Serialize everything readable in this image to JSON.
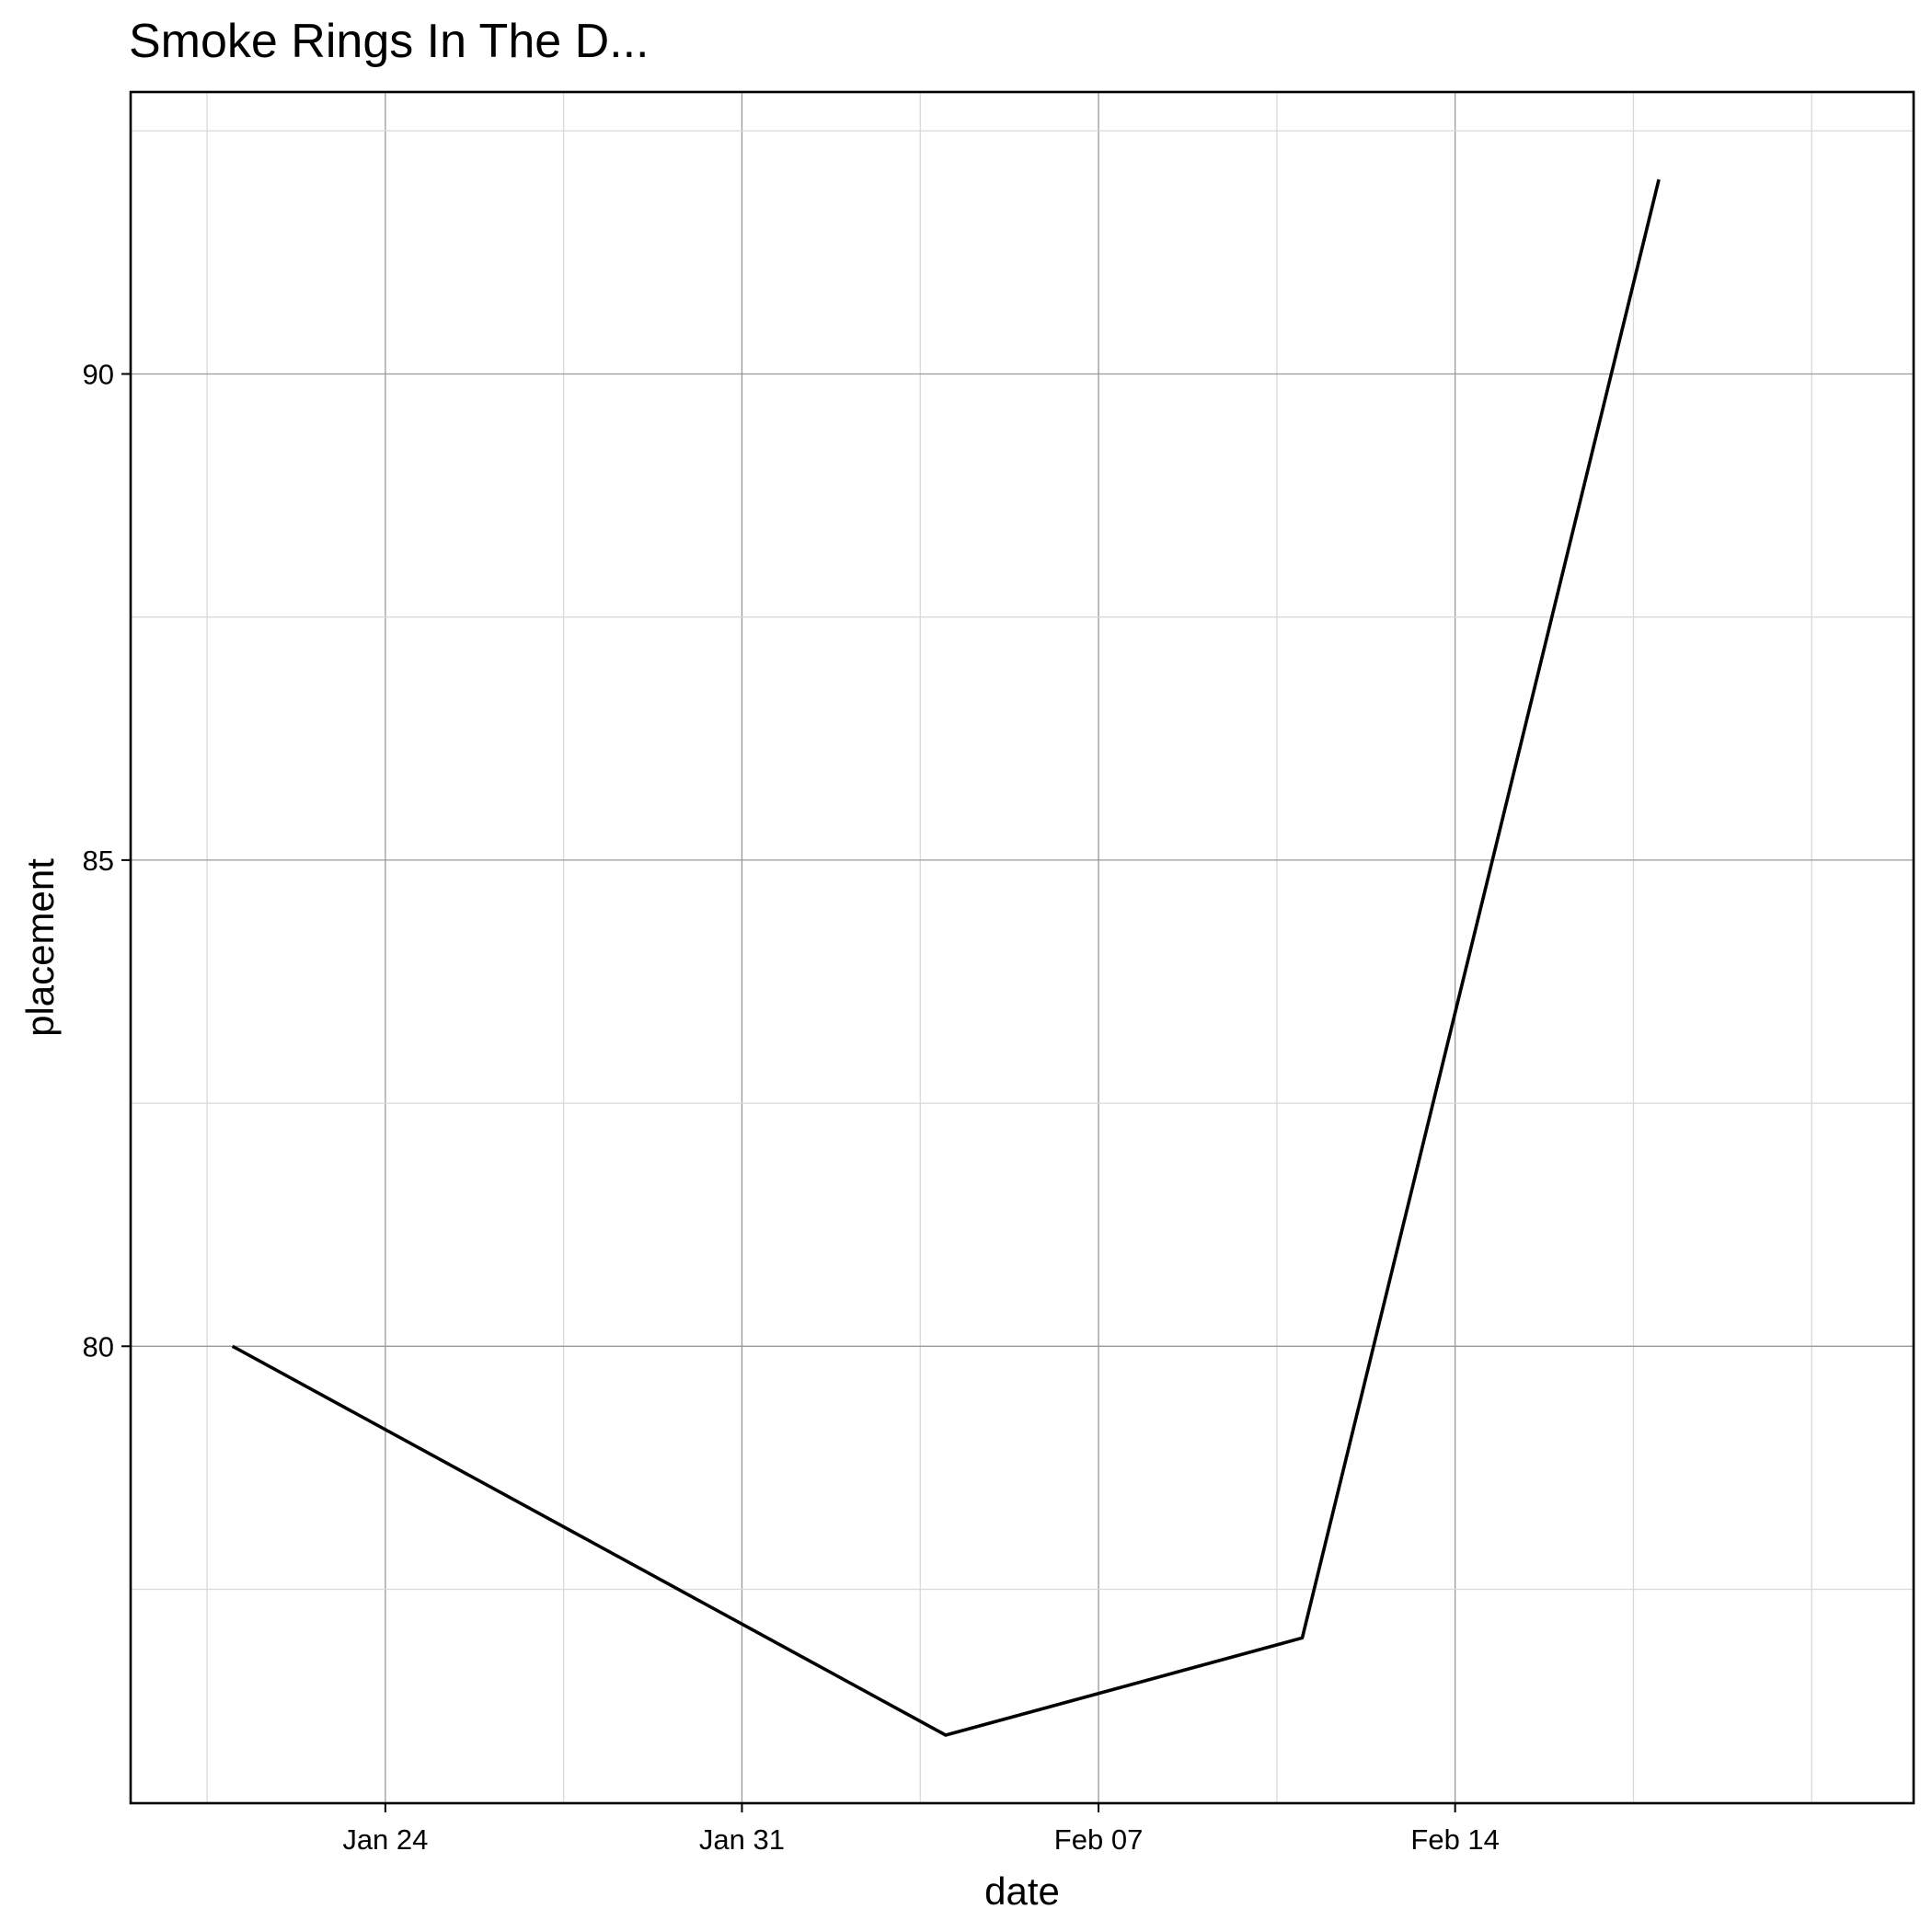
{
  "chart_data": {
    "type": "line",
    "title": "Smoke Rings In The D...",
    "xlabel": "date",
    "ylabel": "placement",
    "x_tick_labels": [
      "Jan 24",
      "Jan 31",
      "Feb 07",
      "Feb 14"
    ],
    "y_tick_labels": [
      "80",
      "85",
      "90"
    ],
    "x_ticks": [
      "2024-01-24",
      "2024-01-31",
      "2024-02-07",
      "2024-02-14"
    ],
    "y_ticks": [
      80,
      85,
      90
    ],
    "xlim": [
      "2024-01-19",
      "2024-02-23"
    ],
    "ylim": [
      75.3,
      92.9
    ],
    "grid": true,
    "series": [
      {
        "color": "#000000",
        "x": [
          "2024-01-21",
          "2024-02-04",
          "2024-02-11",
          "2024-02-18"
        ],
        "y": [
          80,
          76,
          77,
          92
        ]
      }
    ]
  }
}
